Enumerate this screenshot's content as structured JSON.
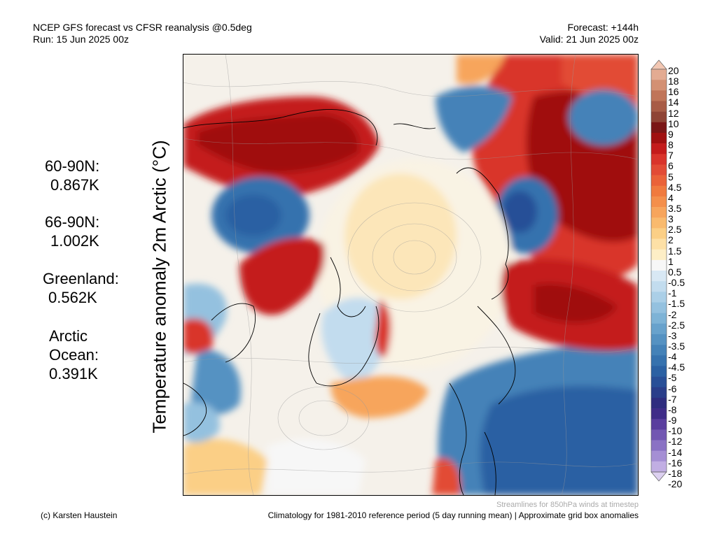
{
  "header": {
    "title_line1": "NCEP GFS forecast vs CFSR reanalysis @0.5deg",
    "title_line2": "Run: 15 Jun 2025 00z",
    "forecast_line1": "Forecast: +144h",
    "forecast_line2": "Valid: 21 Jun 2025 00z"
  },
  "y_label": "Temperature anomaly 2m Arctic (°C)",
  "stats": [
    {
      "name": "60-90N:",
      "value": "0.867K"
    },
    {
      "name": "66-90N:",
      "value": "1.002K"
    },
    {
      "name": "Greenland:",
      "value": "0.562K"
    },
    {
      "name": "Arctic Ocean:",
      "value": "0.391K"
    }
  ],
  "colorbar": {
    "labels": [
      "20",
      "18",
      "16",
      "14",
      "12",
      "10",
      "9",
      "8",
      "7",
      "6",
      "5",
      "4.5",
      "4",
      "3.5",
      "3",
      "2.5",
      "2",
      "1.5",
      "1",
      "0.5",
      "-0.5",
      "-1",
      "-1.5",
      "-2",
      "-2.5",
      "-3",
      "-3.5",
      "-4",
      "-4.5",
      "-5",
      "-6",
      "-7",
      "-8",
      "-9",
      "-10",
      "-12",
      "-14",
      "-16",
      "-18",
      "-20"
    ],
    "colors": [
      "#f2c7b3",
      "#e3ab92",
      "#d39073",
      "#c07559",
      "#a85c46",
      "#8f4435",
      "#7a1616",
      "#a01010",
      "#c41b1b",
      "#d9342b",
      "#e24b35",
      "#ea6238",
      "#f07a3e",
      "#f48f4b",
      "#f7a55c",
      "#f9ba6e",
      "#fbcf86",
      "#fde0a6",
      "#fdeec6",
      "#f7f7f7",
      "#d8e8f4",
      "#c2dcee",
      "#abcfe7",
      "#94c1df",
      "#7eb3d6",
      "#68a2cc",
      "#5592c2",
      "#4482b8",
      "#3672ae",
      "#2b61a3",
      "#284f97",
      "#2a3e8a",
      "#2f2d7f",
      "#3f2c88",
      "#5a3e9e",
      "#7257b2",
      "#8a72c4",
      "#a58fd4",
      "#c1aee3",
      "#dcd0f0"
    ]
  },
  "footer": {
    "left": "(c) Karsten Haustein",
    "right": "Climatology for 1981-2010 reference period (5 day running mean) | Approximate grid box anomalies",
    "stream_note": "Streamlines for 850hPa winds at timestep"
  }
}
